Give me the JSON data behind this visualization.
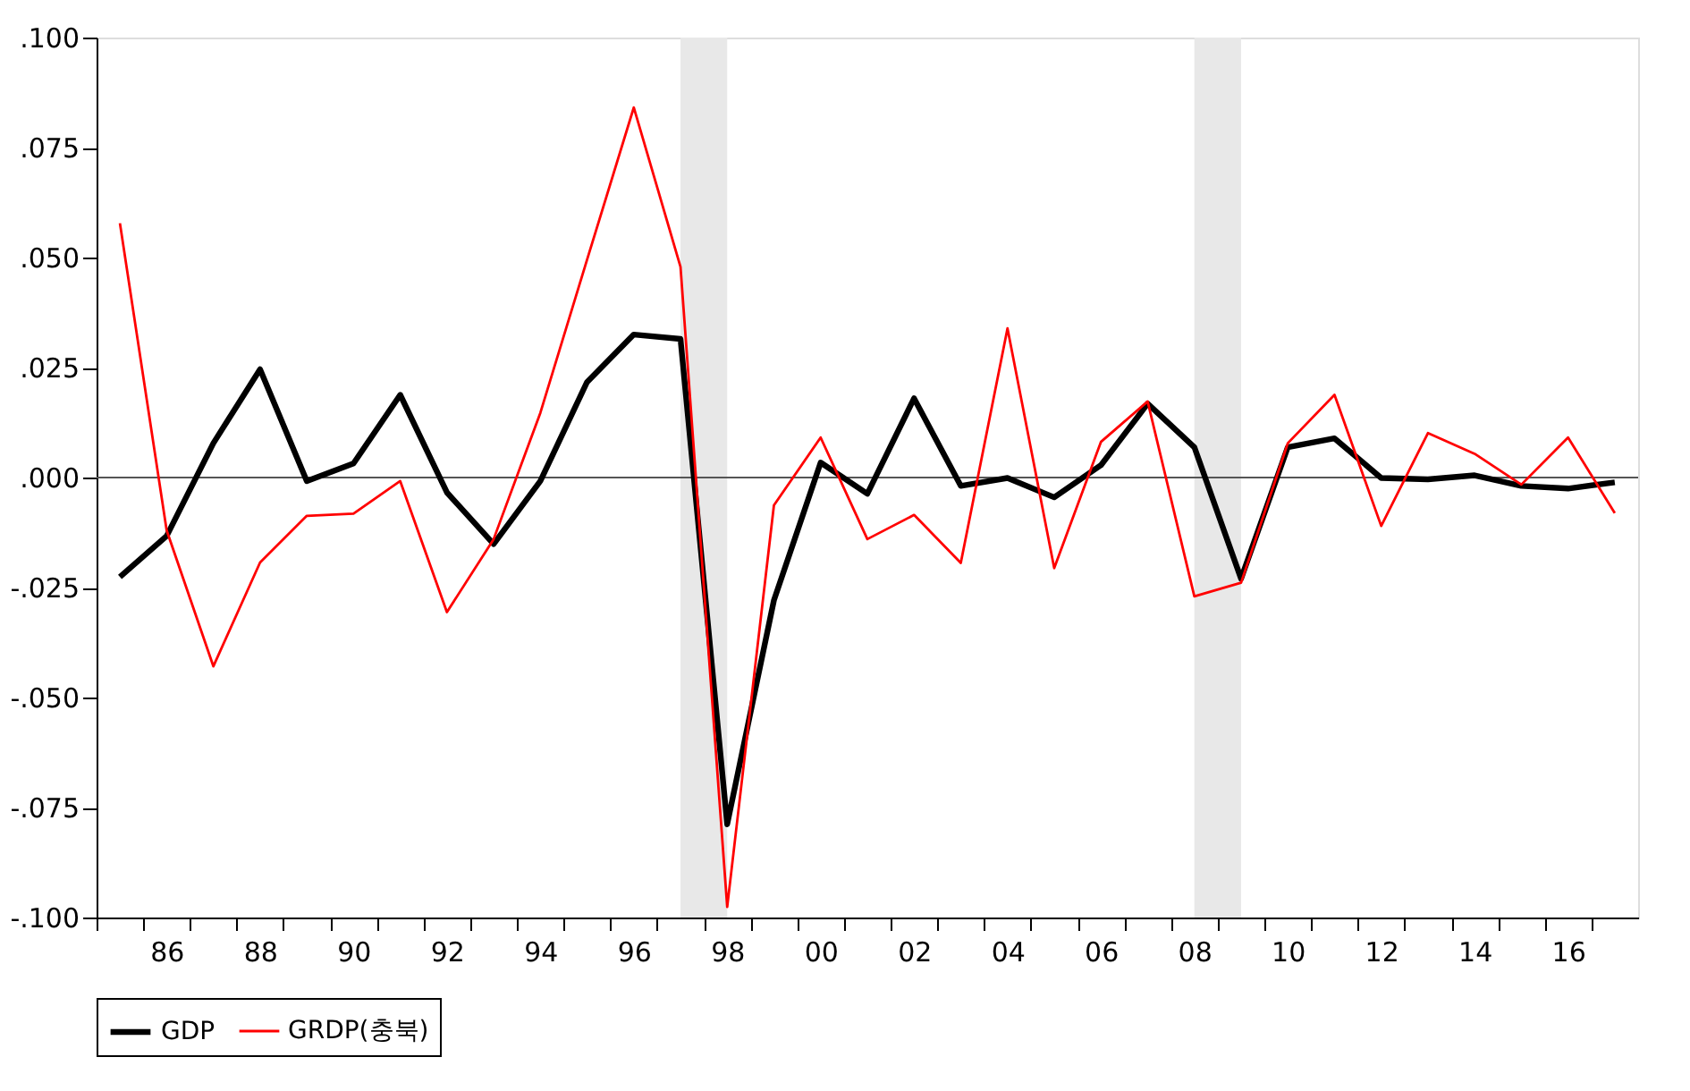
{
  "chart_data": {
    "type": "line",
    "x": [
      1985,
      1986,
      1987,
      1988,
      1989,
      1990,
      1991,
      1992,
      1993,
      1994,
      1995,
      1996,
      1997,
      1998,
      1999,
      2000,
      2001,
      2002,
      2003,
      2004,
      2005,
      2006,
      2007,
      2008,
      2009,
      2010,
      2011,
      2012,
      2013,
      2014,
      2015,
      2016,
      2017
    ],
    "series": [
      {
        "name": "GDP",
        "color": "#000000",
        "values": [
          -0.0226,
          -0.0133,
          0.0078,
          0.0246,
          -0.0008,
          0.0032,
          0.0188,
          -0.0034,
          -0.0151,
          -0.0008,
          0.0217,
          0.0325,
          0.0315,
          -0.0788,
          -0.0279,
          0.0034,
          -0.0037,
          0.018,
          -0.0019,
          -0.0001,
          -0.0045,
          0.0028,
          0.0168,
          0.0069,
          -0.023,
          0.0069,
          0.0089,
          -0.0001,
          -0.0004,
          0.0005,
          -0.0019,
          -0.0025,
          -0.0011
        ]
      },
      {
        "name": "GRDP(충북)",
        "color": "#ff0000",
        "values": [
          0.0578,
          -0.012,
          -0.0429,
          -0.0193,
          -0.0087,
          -0.0082,
          -0.0008,
          -0.0306,
          -0.014,
          0.0147,
          0.0495,
          0.0841,
          0.0479,
          -0.0976,
          -0.0063,
          0.0091,
          -0.014,
          -0.0085,
          -0.0194,
          0.0339,
          -0.0206,
          0.0081,
          0.0173,
          -0.027,
          -0.0239,
          0.0078,
          0.0188,
          -0.011,
          0.0101,
          0.0054,
          -0.0016,
          0.0091,
          -0.0081
        ]
      }
    ],
    "xlim": [
      1984.5,
      2017.5
    ],
    "xticks": [
      {
        "value": 1984.5,
        "label": null
      },
      {
        "value": 1985.5,
        "label": null
      },
      {
        "value": 1986.5,
        "label": null
      },
      {
        "value": 1987.5,
        "label": null
      },
      {
        "value": 1988.5,
        "label": null
      },
      {
        "value": 1989.5,
        "label": null
      },
      {
        "value": 1990.5,
        "label": null
      },
      {
        "value": 1991.5,
        "label": null
      },
      {
        "value": 1992.5,
        "label": null
      },
      {
        "value": 1993.5,
        "label": null
      },
      {
        "value": 1994.5,
        "label": null
      },
      {
        "value": 1995.5,
        "label": null
      },
      {
        "value": 1996.5,
        "label": null
      },
      {
        "value": 1997.5,
        "label": null
      },
      {
        "value": 1998.5,
        "label": null
      },
      {
        "value": 1999.5,
        "label": null
      },
      {
        "value": 2000.5,
        "label": null
      },
      {
        "value": 2001.5,
        "label": null
      },
      {
        "value": 2002.5,
        "label": null
      },
      {
        "value": 2003.5,
        "label": null
      },
      {
        "value": 2004.5,
        "label": null
      },
      {
        "value": 2005.5,
        "label": null
      },
      {
        "value": 2006.5,
        "label": null
      },
      {
        "value": 2007.5,
        "label": null
      },
      {
        "value": 2008.5,
        "label": null
      },
      {
        "value": 2009.5,
        "label": null
      },
      {
        "value": 2010.5,
        "label": null
      },
      {
        "value": 2011.5,
        "label": null
      },
      {
        "value": 2012.5,
        "label": null
      },
      {
        "value": 2013.5,
        "label": null
      },
      {
        "value": 2014.5,
        "label": null
      },
      {
        "value": 2015.5,
        "label": null
      },
      {
        "value": 2016.5,
        "label": null
      },
      {
        "value": 1986,
        "label": "86"
      },
      {
        "value": 1988,
        "label": "88"
      },
      {
        "value": 1990,
        "label": "90"
      },
      {
        "value": 1992,
        "label": "92"
      },
      {
        "value": 1994,
        "label": "94"
      },
      {
        "value": 1996,
        "label": "96"
      },
      {
        "value": 1998,
        "label": "98"
      },
      {
        "value": 2000,
        "label": "00"
      },
      {
        "value": 2002,
        "label": "02"
      },
      {
        "value": 2004,
        "label": "04"
      },
      {
        "value": 2006,
        "label": "06"
      },
      {
        "value": 2008,
        "label": "08"
      },
      {
        "value": 2010,
        "label": "10"
      },
      {
        "value": 2012,
        "label": "12"
      },
      {
        "value": 2014,
        "label": "14"
      },
      {
        "value": 2016,
        "label": "16"
      }
    ],
    "ylim": [
      -0.1,
      0.1
    ],
    "yticks": [
      {
        "value": -0.1,
        "label": "-.100"
      },
      {
        "value": -0.075,
        "label": "-.075"
      },
      {
        "value": -0.05,
        "label": "-.050"
      },
      {
        "value": -0.025,
        "label": "-.025"
      },
      {
        "value": 0,
        "label": ".000"
      },
      {
        "value": 0.025,
        "label": ".025"
      },
      {
        "value": 0.05,
        "label": ".050"
      },
      {
        "value": 0.075,
        "label": ".075"
      },
      {
        "value": 0.1,
        "label": ".100"
      }
    ],
    "ref_lines": [
      {
        "axis": "y",
        "value": 0,
        "color": "#555555"
      }
    ],
    "bands": [
      {
        "axis": "x",
        "from": 1997,
        "to": 1998,
        "color": "#e8e8e8"
      },
      {
        "axis": "x",
        "from": 2008,
        "to": 2009,
        "color": "#e8e8e8"
      }
    ],
    "grid": false,
    "legend": "bottom",
    "line_style": "solid",
    "marker": "none"
  }
}
